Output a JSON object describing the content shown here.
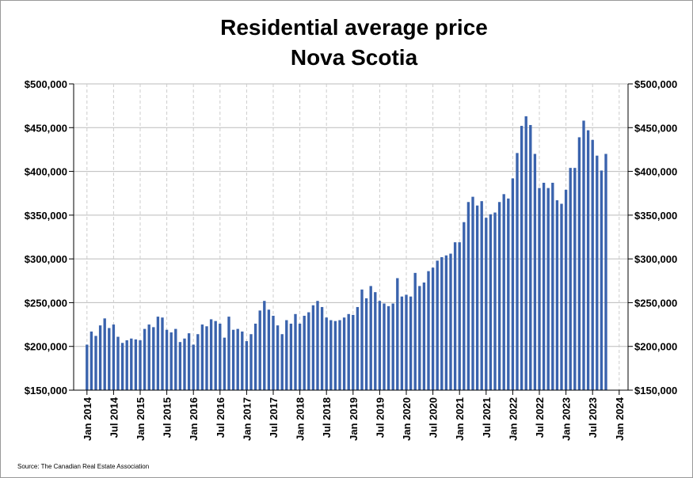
{
  "chart_data": {
    "type": "bar",
    "title": "Residential average price",
    "subtitle": "Nova Scotia",
    "source": "Source: The Canadian Real Estate Association",
    "color": "#3a63ad",
    "grid": true,
    "values": [
      202000,
      217000,
      212000,
      224000,
      232000,
      221000,
      225000,
      211000,
      204000,
      207000,
      209000,
      208000,
      207000,
      220000,
      225000,
      222000,
      234000,
      233000,
      219000,
      216000,
      220000,
      205000,
      209000,
      215000,
      202000,
      214000,
      225000,
      223000,
      231000,
      229000,
      226000,
      210000,
      234000,
      219000,
      220000,
      217000,
      206000,
      214000,
      226000,
      241000,
      252000,
      242000,
      235000,
      224000,
      214000,
      230000,
      226000,
      237000,
      226000,
      235000,
      239000,
      247000,
      252000,
      245000,
      233000,
      230000,
      229000,
      230000,
      233000,
      237000,
      236000,
      245000,
      265000,
      255000,
      269000,
      262000,
      252000,
      249000,
      246000,
      249000,
      278000,
      257000,
      259000,
      257000,
      284000,
      269000,
      273000,
      286000,
      290000,
      298000,
      302000,
      304000,
      306000,
      319000,
      319000,
      342000,
      365000,
      371000,
      361000,
      366000,
      347000,
      351000,
      353000,
      365000,
      374000,
      369000,
      392000,
      421000,
      452000,
      463000,
      453000,
      420000,
      381000,
      387000,
      381000,
      387000,
      367000,
      363000,
      379000,
      404000,
      404000,
      439000,
      458000,
      447000,
      436000,
      418000,
      401000,
      420000
    ],
    "xlim": [
      -3,
      122
    ],
    "xticks": [
      {
        "value": 0,
        "label": "Jan 2014"
      },
      {
        "value": 6,
        "label": "Jul 2014"
      },
      {
        "value": 12,
        "label": "Jan 2015"
      },
      {
        "value": 18,
        "label": "Jul 2015"
      },
      {
        "value": 24,
        "label": "Jan 2016"
      },
      {
        "value": 30,
        "label": "Jul 2016"
      },
      {
        "value": 36,
        "label": "Jan 2017"
      },
      {
        "value": 42,
        "label": "Jul 2017"
      },
      {
        "value": 48,
        "label": "Jan 2018"
      },
      {
        "value": 54,
        "label": "Jul 2018"
      },
      {
        "value": 60,
        "label": "Jan 2019"
      },
      {
        "value": 66,
        "label": "Jul 2019"
      },
      {
        "value": 72,
        "label": "Jan 2020"
      },
      {
        "value": 78,
        "label": "Jul 2020"
      },
      {
        "value": 84,
        "label": "Jan 2021"
      },
      {
        "value": 90,
        "label": "Jul 2021"
      },
      {
        "value": 96,
        "label": "Jan 2022"
      },
      {
        "value": 102,
        "label": "Jul 2022"
      },
      {
        "value": 108,
        "label": "Jan 2023"
      },
      {
        "value": 114,
        "label": "Jul 2023"
      },
      {
        "value": 120,
        "label": "Jan 2024"
      }
    ],
    "ylim": [
      150000,
      500000
    ],
    "yticks": [
      {
        "value": 150000,
        "label": "$150,000"
      },
      {
        "value": 200000,
        "label": "$200,000"
      },
      {
        "value": 250000,
        "label": "$250,000"
      },
      {
        "value": 300000,
        "label": "$300,000"
      },
      {
        "value": 350000,
        "label": "$350,000"
      },
      {
        "value": 400000,
        "label": "$400,000"
      },
      {
        "value": 450000,
        "label": "$450,000"
      },
      {
        "value": 500000,
        "label": "$500,000"
      }
    ]
  }
}
